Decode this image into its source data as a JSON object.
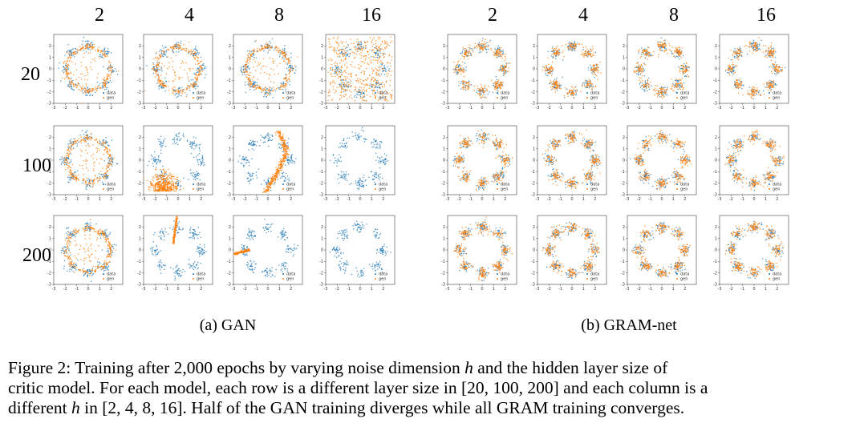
{
  "column_headers": [
    "2",
    "4",
    "8",
    "16"
  ],
  "row_headers": [
    "20",
    "100",
    "200"
  ],
  "subcaptions": {
    "gan": "(a) GAN",
    "gram": "(b) GRAM-net"
  },
  "caption": {
    "line1_pre": "Figure 2: Training after 2,000 epochs by varying noise dimension ",
    "h_symbol": "h",
    "line1_post": " and the hidden layer size of",
    "line2": "critic model. For each model, each row is a different layer size in [20, 100, 200] and each column is a",
    "line3_pre": "different ",
    "line3_post": " in [2, 4, 8, 16]. Half of the GAN training diverges while all GRAM training converges."
  },
  "colors": {
    "data": "#1f77b4",
    "gen": "#ff7f0e"
  },
  "chart_data": {
    "type": "scatter",
    "panel_grid": {
      "rows": 3,
      "cols": 4,
      "row_label_values": [
        20,
        100,
        200
      ],
      "col_label_values": [
        2,
        4,
        8,
        16
      ]
    },
    "xlim": [
      -3,
      3
    ],
    "ylim": [
      -3,
      3
    ],
    "xticks": [
      "-3",
      "-2",
      "-1",
      "0",
      "1",
      "2"
    ],
    "yticks": [
      "2",
      "1",
      "0",
      "-1",
      "-2",
      "-3"
    ],
    "legend": {
      "entries": [
        "data",
        "gen"
      ],
      "placement": "lower-right"
    },
    "data_series": {
      "name": "data",
      "mixture_modes": 8,
      "radius": 2.0,
      "std": 0.25
    },
    "groups": [
      {
        "name": "GAN",
        "panels": [
          [
            {
              "gen": "ring"
            },
            {
              "gen": "ring"
            },
            {
              "gen": "ring"
            },
            {
              "gen": "diffuse"
            }
          ],
          [
            {
              "gen": "ring"
            },
            {
              "gen": "collapsed-lower-left"
            },
            {
              "gen": "collapsed-arc-right"
            },
            {
              "gen": "none"
            }
          ],
          [
            {
              "gen": "ring"
            },
            {
              "gen": "collapsed-line-center"
            },
            {
              "gen": "collapsed-line-left"
            },
            {
              "gen": "none"
            }
          ]
        ]
      },
      {
        "name": "GRAM-net",
        "panels": [
          [
            {
              "gen": "modes"
            },
            {
              "gen": "modes"
            },
            {
              "gen": "modes"
            },
            {
              "gen": "modes"
            }
          ],
          [
            {
              "gen": "modes"
            },
            {
              "gen": "modes"
            },
            {
              "gen": "modes"
            },
            {
              "gen": "modes"
            }
          ],
          [
            {
              "gen": "modes"
            },
            {
              "gen": "modes"
            },
            {
              "gen": "modes"
            },
            {
              "gen": "modes"
            }
          ]
        ]
      }
    ]
  }
}
